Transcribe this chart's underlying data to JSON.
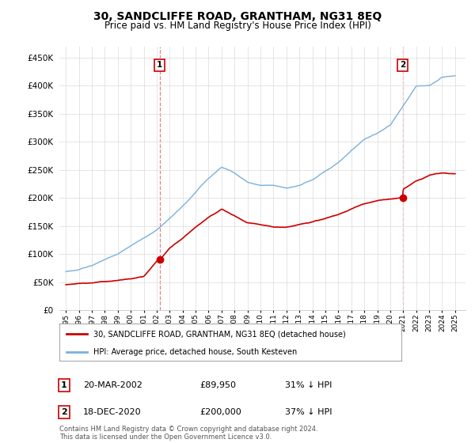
{
  "title": "30, SANDCLIFFE ROAD, GRANTHAM, NG31 8EQ",
  "subtitle": "Price paid vs. HM Land Registry's House Price Index (HPI)",
  "ytick_values": [
    0,
    50000,
    100000,
    150000,
    200000,
    250000,
    300000,
    350000,
    400000,
    450000
  ],
  "ylim": [
    0,
    470000
  ],
  "xlim_start": 1994.5,
  "xlim_end": 2025.8,
  "transaction1": {
    "date_num": 2002.22,
    "price": 89950,
    "label": "1"
  },
  "transaction2": {
    "date_num": 2020.96,
    "price": 200000,
    "label": "2"
  },
  "vline1_x": 2002.22,
  "vline2_x": 2020.96,
  "legend_line1": "30, SANDCLIFFE ROAD, GRANTHAM, NG31 8EQ (detached house)",
  "legend_line2": "HPI: Average price, detached house, South Kesteven",
  "table_row1": [
    "1",
    "20-MAR-2002",
    "£89,950",
    "31% ↓ HPI"
  ],
  "table_row2": [
    "2",
    "18-DEC-2020",
    "£200,000",
    "37% ↓ HPI"
  ],
  "footnote": "Contains HM Land Registry data © Crown copyright and database right 2024.\nThis data is licensed under the Open Government Licence v3.0.",
  "hpi_color": "#7ab0dc",
  "price_color": "#cc0000",
  "vline_color": "#e88080",
  "background_color": "#ffffff",
  "grid_color": "#e0e0e0",
  "xticks": [
    1995,
    1996,
    1997,
    1998,
    1999,
    2000,
    2001,
    2002,
    2003,
    2004,
    2005,
    2006,
    2007,
    2008,
    2009,
    2010,
    2011,
    2012,
    2013,
    2014,
    2015,
    2016,
    2017,
    2018,
    2019,
    2020,
    2021,
    2022,
    2023,
    2024,
    2025
  ],
  "hpi_anchors_x": [
    1995,
    1996,
    1997,
    1998,
    1999,
    2000,
    2001,
    2002,
    2003,
    2004,
    2005,
    2006,
    2007,
    2008,
    2009,
    2010,
    2011,
    2012,
    2013,
    2014,
    2015,
    2016,
    2017,
    2018,
    2019,
    2020,
    2021,
    2022,
    2023,
    2024,
    2025
  ],
  "hpi_anchors_y": [
    68000,
    73000,
    80000,
    90000,
    100000,
    115000,
    128000,
    143000,
    163000,
    185000,
    210000,
    235000,
    255000,
    245000,
    228000,
    222000,
    222000,
    218000,
    222000,
    232000,
    248000,
    262000,
    285000,
    305000,
    315000,
    330000,
    365000,
    400000,
    400000,
    415000,
    418000
  ],
  "price_anchors_x": [
    1995,
    1996,
    1997,
    1998,
    1999,
    2000,
    2001,
    2002,
    2002.22,
    2003,
    2004,
    2005,
    2006,
    2007,
    2008,
    2009,
    2010,
    2011,
    2012,
    2013,
    2014,
    2015,
    2016,
    2017,
    2018,
    2019,
    2020,
    2020.96,
    2021,
    2022,
    2023,
    2024,
    2025
  ],
  "price_anchors_y": [
    45000,
    47000,
    49000,
    51000,
    53000,
    56000,
    60000,
    87000,
    89950,
    110000,
    128000,
    148000,
    165000,
    180000,
    168000,
    155000,
    152000,
    148000,
    148000,
    152000,
    158000,
    163000,
    170000,
    180000,
    190000,
    195000,
    198000,
    200000,
    215000,
    230000,
    240000,
    245000,
    243000
  ]
}
